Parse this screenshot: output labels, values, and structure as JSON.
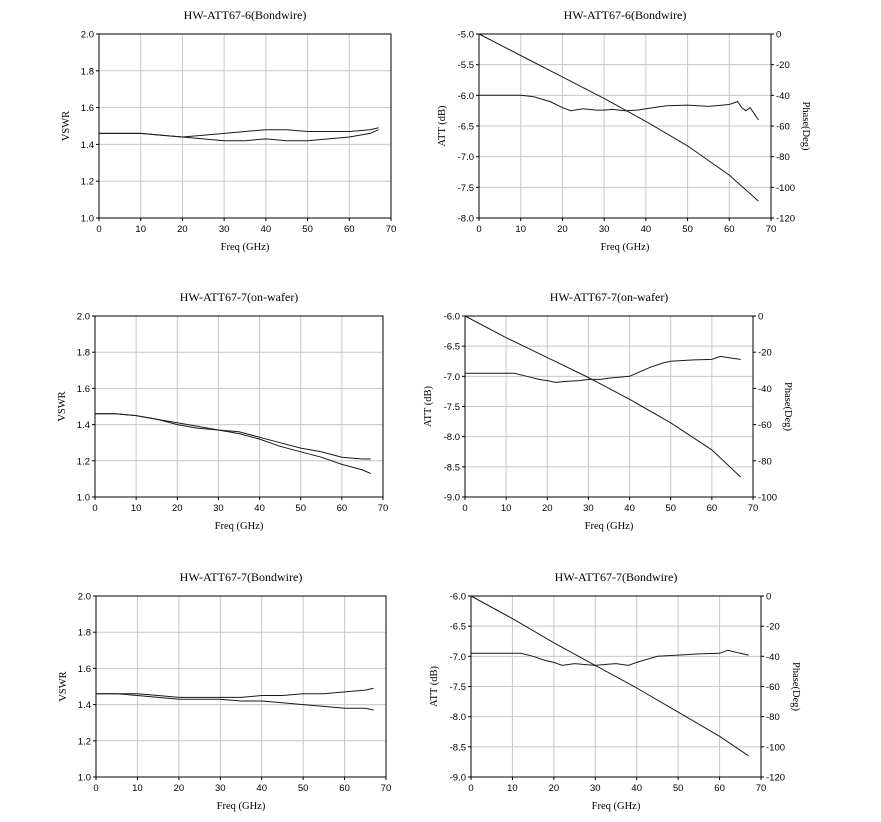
{
  "chart_data": [
    {
      "type": "line",
      "title": "HW-ATT67-6(Bondwire)",
      "xlabel": "Freq (GHz)",
      "ylabel": "VSWR",
      "xlim": [
        0,
        70
      ],
      "ylim": [
        1.0,
        2.0
      ],
      "xticks": [
        "0",
        "10",
        "20",
        "30",
        "40",
        "50",
        "60",
        "70"
      ],
      "yticks": [
        "1.0",
        "1.2",
        "1.4",
        "1.6",
        "1.8",
        "2.0"
      ],
      "grid": true,
      "series": [
        {
          "x": [
            0,
            5,
            10,
            15,
            20,
            25,
            30,
            35,
            40,
            45,
            50,
            55,
            60,
            65,
            67
          ],
          "y": [
            1.46,
            1.46,
            1.46,
            1.45,
            1.44,
            1.45,
            1.46,
            1.47,
            1.48,
            1.48,
            1.47,
            1.47,
            1.47,
            1.48,
            1.49
          ]
        },
        {
          "x": [
            0,
            5,
            10,
            15,
            20,
            25,
            30,
            35,
            40,
            45,
            50,
            55,
            60,
            65,
            67
          ],
          "y": [
            1.46,
            1.46,
            1.46,
            1.45,
            1.44,
            1.43,
            1.42,
            1.42,
            1.43,
            1.42,
            1.42,
            1.43,
            1.44,
            1.46,
            1.48
          ]
        }
      ]
    },
    {
      "type": "line",
      "title": "HW-ATT67-6(Bondwire)",
      "xlabel": "Freq (GHz)",
      "ylabel": "ATT (dB)",
      "y2label": "Phase(Deg)",
      "xlim": [
        0,
        70
      ],
      "ylim": [
        -8.0,
        -5.0
      ],
      "y2lim": [
        -120,
        0
      ],
      "xticks": [
        "0",
        "10",
        "20",
        "30",
        "40",
        "50",
        "60",
        "70"
      ],
      "yticks": [
        "-8.0",
        "-7.5",
        "-7.0",
        "-6.5",
        "-6.0",
        "-5.5",
        "-5.0"
      ],
      "y2ticks": [
        "-120",
        "-100",
        "-80",
        "-60",
        "-40",
        "-20",
        "0"
      ],
      "grid": true,
      "series": [
        {
          "axis": "left",
          "x": [
            0,
            5,
            10,
            13,
            17,
            20,
            22,
            25,
            28,
            30,
            32,
            35,
            38,
            40,
            45,
            50,
            55,
            60,
            62,
            63,
            64,
            65,
            66,
            67
          ],
          "y": [
            -6.0,
            -6.0,
            -6.0,
            -6.02,
            -6.1,
            -6.2,
            -6.25,
            -6.22,
            -6.24,
            -6.24,
            -6.23,
            -6.25,
            -6.24,
            -6.22,
            -6.17,
            -6.16,
            -6.18,
            -6.15,
            -6.1,
            -6.2,
            -6.25,
            -6.2,
            -6.3,
            -6.4
          ]
        },
        {
          "axis": "right",
          "x": [
            0,
            10,
            20,
            30,
            40,
            50,
            60,
            67
          ],
          "y": [
            0,
            -14,
            -28,
            -42,
            -57,
            -73,
            -92,
            -109
          ]
        }
      ]
    },
    {
      "type": "line",
      "title": "HW-ATT67-7(on-wafer)",
      "xlabel": "Freq (GHz)",
      "ylabel": "VSWR",
      "xlim": [
        0,
        70
      ],
      "ylim": [
        1.0,
        2.0
      ],
      "xticks": [
        "0",
        "10",
        "20",
        "30",
        "40",
        "50",
        "60",
        "70"
      ],
      "yticks": [
        "1.0",
        "1.2",
        "1.4",
        "1.6",
        "1.8",
        "2.0"
      ],
      "grid": true,
      "series": [
        {
          "x": [
            0,
            5,
            10,
            15,
            20,
            25,
            30,
            35,
            40,
            45,
            50,
            55,
            60,
            65,
            67
          ],
          "y": [
            1.46,
            1.46,
            1.45,
            1.43,
            1.41,
            1.39,
            1.37,
            1.36,
            1.33,
            1.3,
            1.27,
            1.25,
            1.22,
            1.21,
            1.21
          ]
        },
        {
          "x": [
            0,
            5,
            10,
            15,
            20,
            25,
            30,
            35,
            40,
            45,
            50,
            55,
            60,
            65,
            67
          ],
          "y": [
            1.46,
            1.46,
            1.45,
            1.43,
            1.4,
            1.38,
            1.37,
            1.35,
            1.32,
            1.28,
            1.25,
            1.22,
            1.18,
            1.15,
            1.13
          ]
        }
      ]
    },
    {
      "type": "line",
      "title": "HW-ATT67-7(on-wafer)",
      "xlabel": "Freq (GHz)",
      "ylabel": "ATT (dB)",
      "y2label": "Phase(Deg)",
      "xlim": [
        0,
        70
      ],
      "ylim": [
        -9.0,
        -6.0
      ],
      "y2lim": [
        -100,
        0
      ],
      "xticks": [
        "0",
        "10",
        "20",
        "30",
        "40",
        "50",
        "60",
        "70"
      ],
      "yticks": [
        "-9.0",
        "-8.5",
        "-8.0",
        "-7.5",
        "-7.0",
        "-6.5",
        "-6.0"
      ],
      "y2ticks": [
        "-100",
        "-80",
        "-60",
        "-40",
        "-20",
        "0"
      ],
      "grid": true,
      "series": [
        {
          "axis": "left",
          "x": [
            0,
            5,
            10,
            12,
            15,
            18,
            20,
            22,
            25,
            28,
            30,
            33,
            35,
            40,
            45,
            48,
            50,
            55,
            60,
            62,
            65,
            67
          ],
          "y": [
            -6.95,
            -6.95,
            -6.95,
            -6.95,
            -7.0,
            -7.05,
            -7.07,
            -7.1,
            -7.08,
            -7.07,
            -7.05,
            -7.05,
            -7.03,
            -7.0,
            -6.85,
            -6.78,
            -6.75,
            -6.73,
            -6.72,
            -6.67,
            -6.7,
            -6.72
          ]
        },
        {
          "axis": "right",
          "x": [
            0,
            10,
            20,
            30,
            40,
            50,
            60,
            67
          ],
          "y": [
            0,
            -12,
            -23,
            -34,
            -46,
            -59,
            -74,
            -89
          ]
        }
      ]
    },
    {
      "type": "line",
      "title": "HW-ATT67-7(Bondwire)",
      "xlabel": "Freq (GHz)",
      "ylabel": "VSWR",
      "xlim": [
        0,
        70
      ],
      "ylim": [
        1.0,
        2.0
      ],
      "xticks": [
        "0",
        "10",
        "20",
        "30",
        "40",
        "50",
        "60",
        "70"
      ],
      "yticks": [
        "1.0",
        "1.2",
        "1.4",
        "1.6",
        "1.8",
        "2.0"
      ],
      "grid": true,
      "series": [
        {
          "x": [
            0,
            5,
            10,
            15,
            20,
            25,
            30,
            35,
            40,
            45,
            50,
            55,
            60,
            65,
            67
          ],
          "y": [
            1.46,
            1.46,
            1.46,
            1.45,
            1.44,
            1.44,
            1.44,
            1.44,
            1.45,
            1.45,
            1.46,
            1.46,
            1.47,
            1.48,
            1.49
          ]
        },
        {
          "x": [
            0,
            5,
            10,
            15,
            20,
            25,
            30,
            35,
            40,
            45,
            50,
            55,
            60,
            65,
            67
          ],
          "y": [
            1.46,
            1.46,
            1.45,
            1.44,
            1.43,
            1.43,
            1.43,
            1.42,
            1.42,
            1.41,
            1.4,
            1.39,
            1.38,
            1.38,
            1.37
          ]
        }
      ]
    },
    {
      "type": "line",
      "title": "HW-ATT67-7(Bondwire)",
      "xlabel": "Freq (GHz)",
      "ylabel": "ATT (dB)",
      "y2label": "Phase(Deg)",
      "xlim": [
        0,
        70
      ],
      "ylim": [
        -9.0,
        -6.0
      ],
      "y2lim": [
        -120,
        0
      ],
      "xticks": [
        "0",
        "10",
        "20",
        "30",
        "40",
        "50",
        "60",
        "70"
      ],
      "yticks": [
        "-9.0",
        "-8.5",
        "-8.0",
        "-7.5",
        "-7.0",
        "-6.5",
        "-6.0"
      ],
      "y2ticks": [
        "-120",
        "-100",
        "-80",
        "-60",
        "-40",
        "-20",
        "0"
      ],
      "grid": true,
      "series": [
        {
          "axis": "left",
          "x": [
            0,
            5,
            10,
            12,
            15,
            18,
            20,
            22,
            25,
            28,
            30,
            33,
            35,
            38,
            40,
            45,
            50,
            55,
            60,
            62,
            65,
            67
          ],
          "y": [
            -6.95,
            -6.95,
            -6.95,
            -6.95,
            -7.0,
            -7.07,
            -7.1,
            -7.15,
            -7.12,
            -7.14,
            -7.15,
            -7.13,
            -7.12,
            -7.15,
            -7.1,
            -7.0,
            -6.98,
            -6.96,
            -6.95,
            -6.9,
            -6.95,
            -6.98
          ]
        },
        {
          "axis": "right",
          "x": [
            0,
            10,
            20,
            30,
            40,
            50,
            60,
            67
          ],
          "y": [
            0,
            -15,
            -31,
            -46,
            -61,
            -77,
            -93,
            -106
          ]
        }
      ]
    }
  ]
}
